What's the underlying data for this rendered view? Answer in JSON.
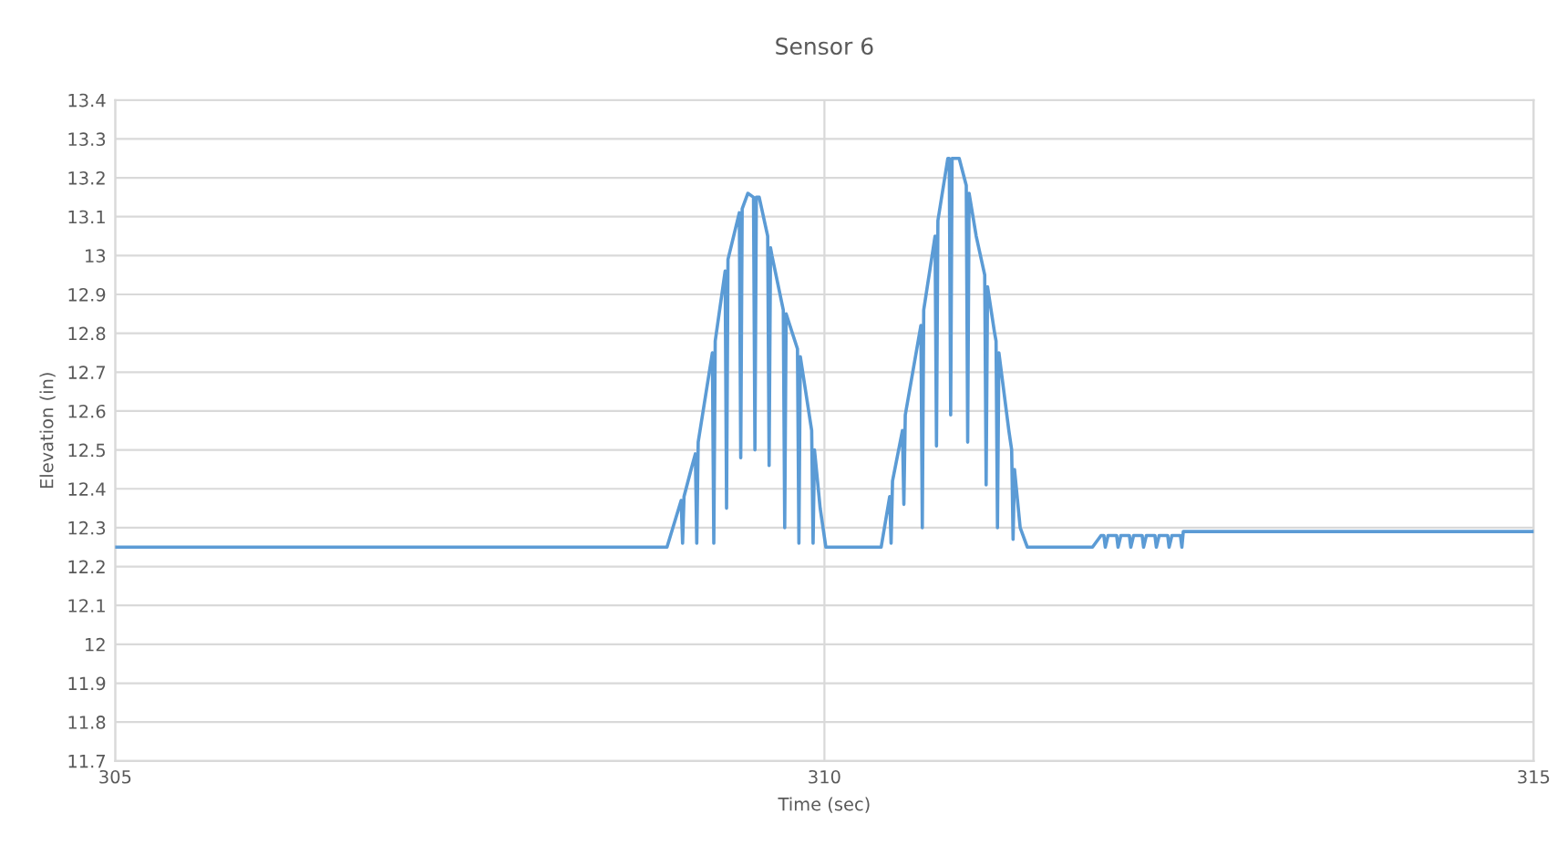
{
  "chart_data": {
    "type": "line",
    "title": "Sensor 6",
    "xlabel": "Time (sec)",
    "ylabel": "Elevation (in)",
    "xlim": [
      305,
      315
    ],
    "xticks": [
      305,
      310,
      315
    ],
    "ylim": [
      11.7,
      13.4
    ],
    "yticks": [
      11.7,
      11.8,
      11.9,
      12,
      12.1,
      12.2,
      12.3,
      12.4,
      12.5,
      12.6,
      12.7,
      12.8,
      12.9,
      13,
      13.1,
      13.2,
      13.3,
      13.4
    ],
    "grid": true,
    "marker": "none",
    "line_style": "solid",
    "series": [
      {
        "color": "#5b9bd5",
        "x": [
          305,
          308.89,
          308.99,
          309.0,
          309.01,
          309.06,
          309.09,
          309.1,
          309.11,
          309.21,
          309.22,
          309.23,
          309.3,
          309.31,
          309.32,
          309.4,
          309.41,
          309.42,
          309.46,
          309.5,
          309.51,
          309.52,
          309.54,
          309.6,
          309.61,
          309.62,
          309.63,
          309.71,
          309.72,
          309.73,
          309.81,
          309.82,
          309.83,
          309.91,
          309.92,
          309.93,
          309.97,
          310.01,
          310.4,
          310.46,
          310.47,
          310.48,
          310.55,
          310.56,
          310.57,
          310.68,
          310.69,
          310.7,
          310.78,
          310.79,
          310.8,
          310.87,
          310.88,
          310.89,
          310.9,
          310.95,
          311.0,
          311.01,
          311.02,
          311.07,
          311.13,
          311.14,
          311.15,
          311.2,
          311.21,
          311.22,
          311.23,
          311.3,
          311.32,
          311.33,
          311.34,
          311.38,
          311.43,
          311.89,
          311.95,
          311.97,
          311.98,
          312.0,
          312.06,
          312.07,
          312.09,
          312.15,
          312.16,
          312.18,
          312.24,
          312.25,
          312.27,
          312.33,
          312.34,
          312.36,
          312.42,
          312.43,
          312.45,
          312.51,
          312.52,
          312.53,
          315
        ],
        "values": [
          12.25,
          12.25,
          12.37,
          12.26,
          12.38,
          12.45,
          12.49,
          12.26,
          12.52,
          12.75,
          12.26,
          12.78,
          12.96,
          12.35,
          12.99,
          13.11,
          12.48,
          13.12,
          13.16,
          13.15,
          12.5,
          13.15,
          13.15,
          13.05,
          12.46,
          13.02,
          13.0,
          12.86,
          12.3,
          12.85,
          12.76,
          12.26,
          12.74,
          12.55,
          12.26,
          12.5,
          12.35,
          12.25,
          12.25,
          12.38,
          12.26,
          12.42,
          12.55,
          12.36,
          12.59,
          12.82,
          12.3,
          12.86,
          13.05,
          12.51,
          13.09,
          13.25,
          13.25,
          12.59,
          13.25,
          13.25,
          13.18,
          12.52,
          13.16,
          13.05,
          12.95,
          12.41,
          12.92,
          12.8,
          12.78,
          12.3,
          12.75,
          12.55,
          12.5,
          12.27,
          12.45,
          12.3,
          12.25,
          12.25,
          12.28,
          12.28,
          12.25,
          12.28,
          12.28,
          12.25,
          12.28,
          12.28,
          12.25,
          12.28,
          12.28,
          12.25,
          12.28,
          12.28,
          12.25,
          12.28,
          12.28,
          12.25,
          12.28,
          12.28,
          12.25,
          12.29,
          12.29
        ]
      }
    ]
  }
}
